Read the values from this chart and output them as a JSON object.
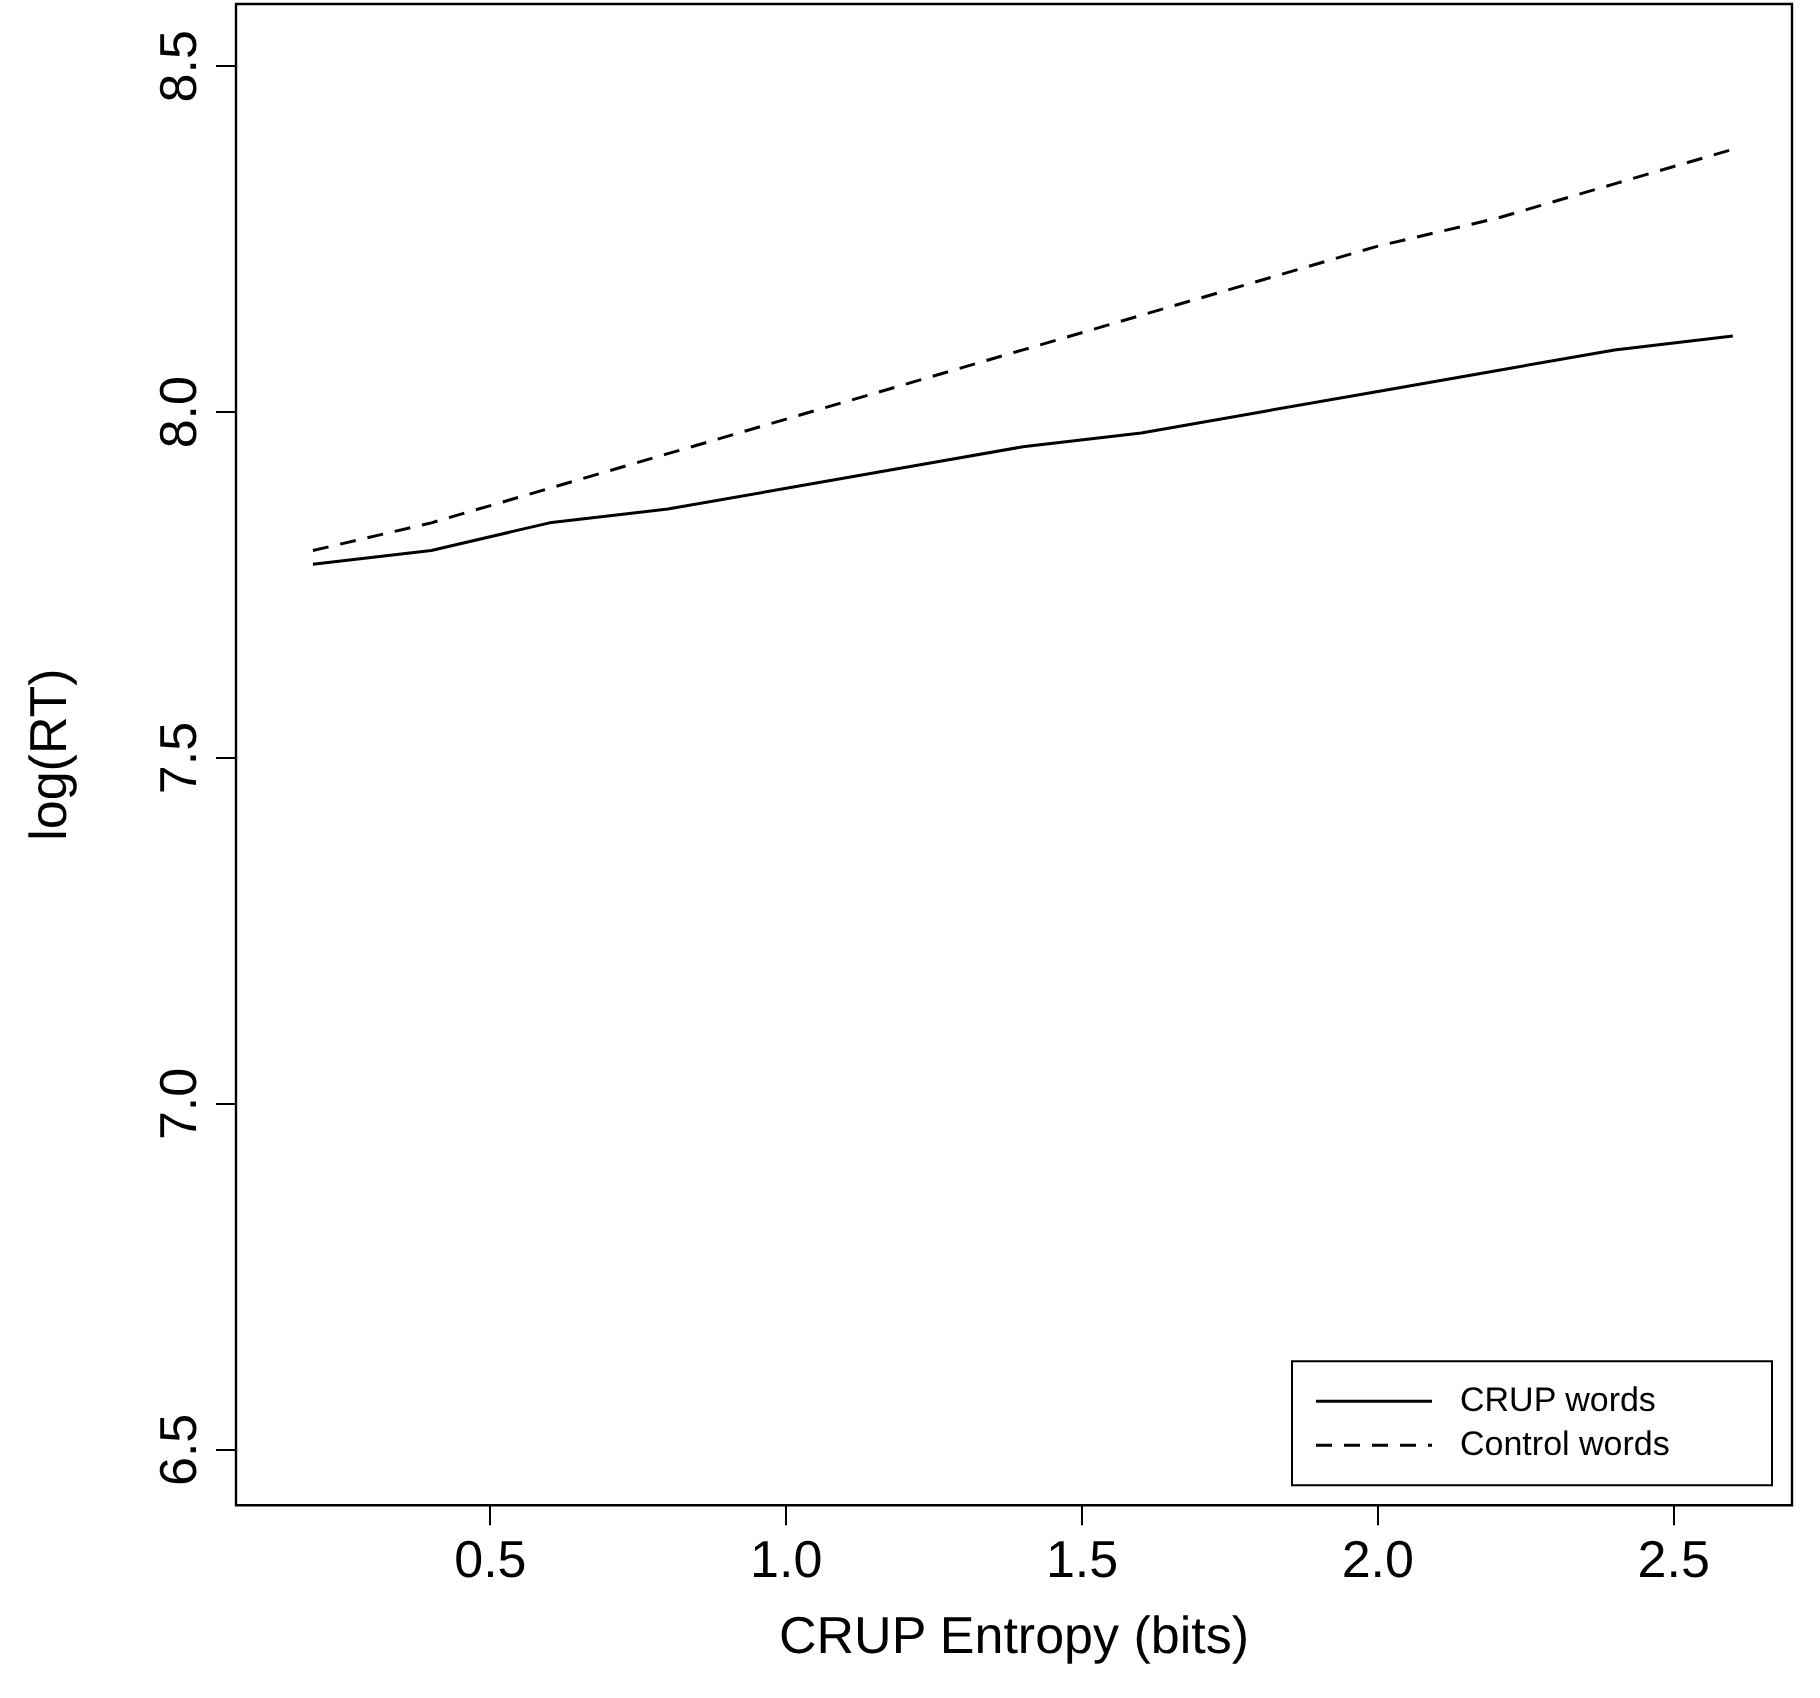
{
  "chart_data": {
    "type": "line",
    "xlabel": "CRUP Entropy (bits)",
    "ylabel": "log(RT)",
    "x": [
      0.2,
      0.4,
      0.6,
      0.8,
      1.0,
      1.2,
      1.4,
      1.6,
      1.8,
      2.0,
      2.2,
      2.4,
      2.6
    ],
    "series": [
      {
        "name": "CRUP words",
        "color": "#000000",
        "line_style": "solid",
        "values": [
          7.78,
          7.8,
          7.84,
          7.86,
          7.89,
          7.92,
          7.95,
          7.97,
          8.0,
          8.03,
          8.06,
          8.09,
          8.11
        ]
      },
      {
        "name": "Control words",
        "color": "#000000",
        "line_style": "dashed",
        "values": [
          7.8,
          7.84,
          7.89,
          7.94,
          7.99,
          8.04,
          8.09,
          8.14,
          8.19,
          8.24,
          8.28,
          8.33,
          8.38
        ]
      }
    ],
    "xlim": [
      0.07,
      2.7
    ],
    "xticks": [
      0.5,
      {
        "value": 1,
        "label": "1.0"
      },
      1.5,
      {
        "value": 2,
        "label": "2.0"
      },
      2.5
    ],
    "ylim": [
      6.42,
      8.59
    ],
    "yticks": [
      6.5,
      {
        "value": 7,
        "label": "7.0"
      },
      7.5,
      {
        "value": 8,
        "label": "8.0"
      },
      8.5
    ],
    "grid": false,
    "legend": "bottom right",
    "marker": "none"
  }
}
